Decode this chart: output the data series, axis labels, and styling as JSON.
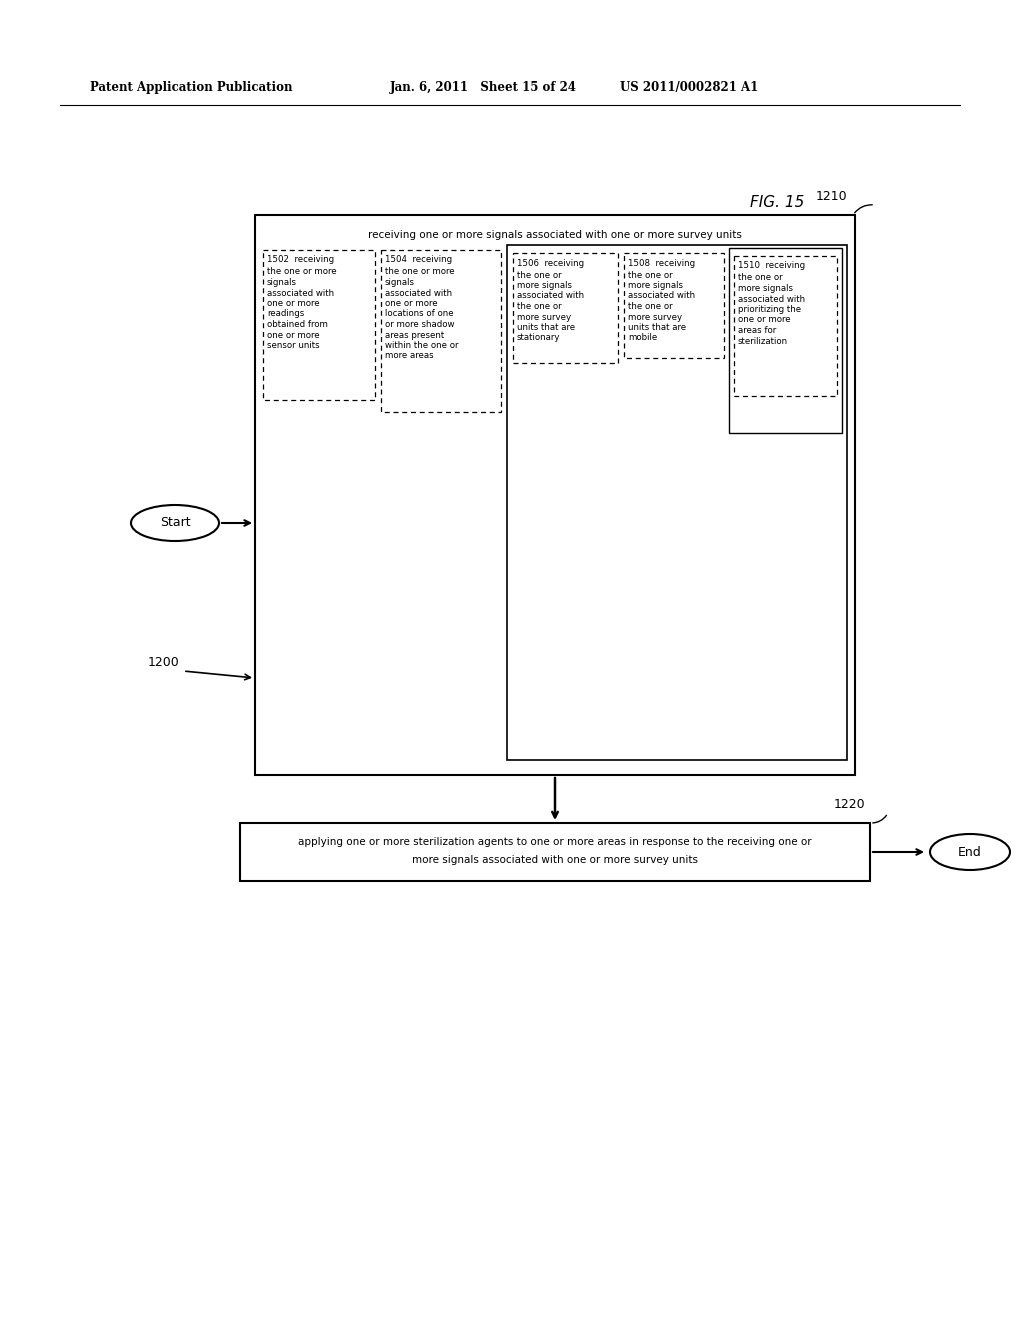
{
  "bg_color": "#ffffff",
  "header_left": "Patent Application Publication",
  "header_mid": "Jan. 6, 2011   Sheet 15 of 24",
  "header_right": "US 2011/0002821 A1",
  "fig_label": "FIG. 15",
  "label_1200": "1200",
  "label_1210": "1210",
  "label_1220": "1220",
  "start_label": "Start",
  "end_label": "End",
  "outer_box_title": "receiving one or more signals associated with one or more survey units",
  "box1502_title": "1502  receiving",
  "box1502_lines": [
    "the one or more",
    "signals",
    "associated with",
    "one or more",
    "readings",
    "obtained from",
    "one or more",
    "sensor units"
  ],
  "box1504_title": "1504  receiving",
  "box1504_lines": [
    "the one or more",
    "signals",
    "associated with",
    "one or more",
    "locations of one",
    "or more shadow",
    "areas present",
    "within the one or",
    "more areas"
  ],
  "box1506_title": "1506  receiving",
  "box1506_lines": [
    "the one or",
    "more signals",
    "associated with",
    "the one or",
    "more survey",
    "units that are",
    "stationary"
  ],
  "box1508_title": "1508  receiving",
  "box1508_lines": [
    "the one or",
    "more signals",
    "associated with",
    "the one or",
    "more survey",
    "units that are",
    "mobile"
  ],
  "box1510_title": "1510  receiving",
  "box1510_lines": [
    "the one or",
    "more signals",
    "associated with",
    "prioritizing the",
    "one or more",
    "areas for",
    "sterilization"
  ],
  "bottom_box_line1": "applying one or more sterilization agents to one or more areas in response to the receiving one or",
  "bottom_box_line2": "more signals associated with one or more survey units"
}
